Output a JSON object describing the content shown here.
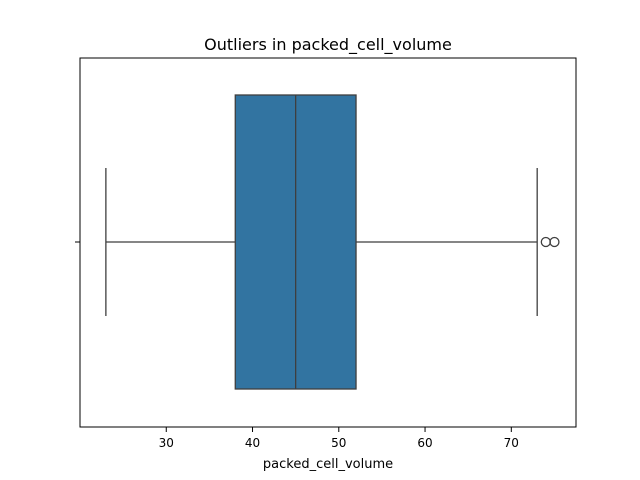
{
  "chart_data": {
    "type": "box",
    "title": "Outliers in packed_cell_volume",
    "xlabel": "packed_cell_volume",
    "ylabel": "",
    "xlim": [
      20,
      77.5
    ],
    "xticks": [
      30,
      40,
      50,
      60,
      70
    ],
    "grid": false,
    "orientation": "horizontal",
    "box": {
      "whisker_low": 23,
      "q1": 38,
      "median": 45,
      "q3": 52,
      "whisker_high": 73,
      "outliers": [
        74,
        75
      ]
    },
    "colors": {
      "box_fill": "#3274a1",
      "line": "#3f3f3f"
    }
  }
}
